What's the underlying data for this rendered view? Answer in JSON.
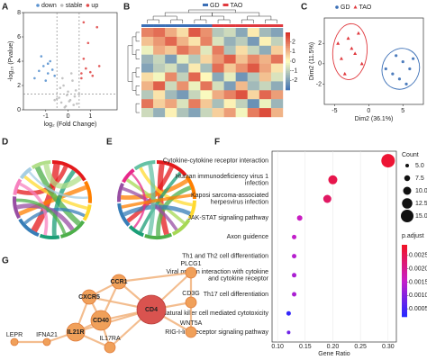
{
  "chart_data": [
    {
      "panel": "A",
      "type": "scatter",
      "xlabel": "log₂ (Fold Change)",
      "ylabel": "-log₁₀ (Pvalue)",
      "xlim": [
        -2,
        2.2
      ],
      "xticks": [
        -1,
        0,
        1
      ],
      "ylim": [
        0,
        8
      ],
      "yticks": [
        0,
        2,
        4,
        6,
        8
      ],
      "vlines": [
        -0.5,
        0.5
      ],
      "hline": 1.3,
      "series": [
        {
          "name": "down",
          "color": "#5b93d0",
          "x": [
            -1.3,
            -1.1,
            -0.9,
            -0.8,
            -1.5,
            -0.7,
            -1.0,
            -0.6,
            -1.2,
            -0.9
          ],
          "values": [
            3.2,
            3.6,
            3.0,
            4.0,
            2.6,
            3.3,
            2.4,
            2.8,
            4.4,
            3.8
          ]
        },
        {
          "name": "stable",
          "color": "#bdbdbd",
          "x": [
            -0.4,
            -0.3,
            -0.2,
            -0.1,
            0,
            0.1,
            0.2,
            0.3,
            0.4,
            -0.5,
            -0.35,
            0.35,
            -0.15,
            0.15,
            0.05,
            -0.05,
            -0.25,
            0.25,
            -0.6,
            0.5
          ],
          "values": [
            1.0,
            0.6,
            2.0,
            0.3,
            1.5,
            0.8,
            2.4,
            1.1,
            0.5,
            0.9,
            1.8,
            1.6,
            0.2,
            3.0,
            0.7,
            1.2,
            2.6,
            0.4,
            0.8,
            1.3
          ]
        },
        {
          "name": "up",
          "color": "#e04a4a",
          "x": [
            0.6,
            0.8,
            0.7,
            1.0,
            1.3,
            0.9,
            0.6,
            1.1,
            1.4,
            0.7
          ],
          "values": [
            3.0,
            3.4,
            4.2,
            3.1,
            6.8,
            5.5,
            2.6,
            2.8,
            3.6,
            7.2
          ]
        }
      ]
    },
    {
      "panel": "B",
      "type": "heatmap",
      "series": [
        {
          "name": "GD",
          "color": "#3b6fb6"
        },
        {
          "name": "TAO",
          "color": "#e0393e"
        }
      ],
      "column_group": [
        0,
        0,
        0,
        0,
        0,
        0,
        1,
        1,
        1,
        1,
        1,
        1
      ],
      "zlim": [
        -3,
        3
      ],
      "zticks": [
        -2,
        -1,
        0,
        1,
        2
      ],
      "values": [
        [
          1.8,
          2.1,
          1.2,
          0.5,
          2.4,
          1.6,
          -1.2,
          -0.8,
          -1.9,
          0.3,
          -1.5,
          -2.0
        ],
        [
          0.9,
          1.5,
          2.2,
          1.1,
          0.4,
          1.8,
          -0.6,
          -1.7,
          -1.1,
          -2.2,
          0.2,
          -1.0
        ],
        [
          -0.3,
          1.2,
          0.8,
          2.0,
          1.4,
          -0.5,
          1.9,
          -1.3,
          0.5,
          -0.9,
          -1.8,
          0.7
        ],
        [
          -1.6,
          -0.9,
          -2.1,
          -0.4,
          -1.2,
          0.6,
          1.5,
          2.3,
          0.9,
          1.7,
          1.1,
          2.0
        ],
        [
          -2.0,
          -1.1,
          -0.7,
          -1.8,
          0.3,
          -1.4,
          2.1,
          0.8,
          1.6,
          2.4,
          1.3,
          0.4
        ],
        [
          0.5,
          -0.2,
          1.7,
          -1.0,
          2.2,
          0.1,
          -1.9,
          -0.4,
          -2.3,
          -1.2,
          0.9,
          -0.6
        ],
        [
          1.1,
          2.3,
          -0.8,
          1.6,
          -0.3,
          2.0,
          -0.7,
          -2.1,
          1.0,
          -1.5,
          -0.9,
          -1.8
        ],
        [
          -1.2,
          0.4,
          -1.5,
          -2.2,
          -0.9,
          -0.1,
          1.2,
          1.8,
          2.5,
          0.6,
          2.2,
          1.4
        ],
        [
          2.0,
          0.7,
          1.3,
          -0.6,
          1.9,
          0.8,
          -1.4,
          0.2,
          -1.0,
          -2.4,
          -0.3,
          -1.6
        ],
        [
          -0.8,
          -1.7,
          0.2,
          -1.3,
          -2.0,
          -0.9,
          0.7,
          1.4,
          -0.2,
          1.9,
          2.6,
          1.1
        ]
      ]
    },
    {
      "panel": "C",
      "type": "scatter",
      "xlabel": "Dim2 (36.1%)",
      "ylabel": "Dim2 (11.5%)",
      "xlim": [
        -6.5,
        8
      ],
      "xticks": [
        -5,
        0,
        5
      ],
      "ylim": [
        -4,
        4.5
      ],
      "yticks": [
        -2,
        0,
        2
      ],
      "series": [
        {
          "name": "GD",
          "color": "#3b6fb6",
          "marker": "circle",
          "x": [
            3.5,
            5,
            4.5,
            6,
            5.5,
            4,
            2.5,
            6.5
          ],
          "values": [
            -1,
            0.2,
            -1.5,
            -0.5,
            -2,
            0.8,
            -0.5,
            0.5
          ]
        },
        {
          "name": "TAO",
          "color": "#e0393e",
          "marker": "triangle",
          "x": [
            -3,
            -2,
            -4,
            -1.5,
            -3.5,
            -2.5,
            -1,
            -4.5
          ],
          "values": [
            2.5,
            1,
            0.5,
            3,
            -1,
            1.5,
            0,
            2
          ]
        }
      ]
    },
    {
      "panel": "D",
      "type": "chord",
      "colors": [
        "#e41a1c",
        "#ff7f00",
        "#ffd92f",
        "#4daf4a",
        "#1b9e77",
        "#377eb8",
        "#984ea3",
        "#f781bf",
        "#a6cee3",
        "#b2df8a"
      ],
      "values": [
        14,
        8,
        6,
        10,
        7,
        9,
        8,
        6,
        5,
        7
      ],
      "links": [
        [
          0,
          5,
          3
        ],
        [
          0,
          7,
          2
        ],
        [
          1,
          6,
          2
        ],
        [
          2,
          8,
          1.5
        ],
        [
          3,
          9,
          2.5
        ],
        [
          4,
          0,
          2
        ],
        [
          5,
          2,
          1.5
        ],
        [
          6,
          3,
          2
        ],
        [
          7,
          4,
          1.5
        ],
        [
          8,
          1,
          1
        ],
        [
          9,
          0,
          2.5
        ],
        [
          3,
          6,
          1.5
        ]
      ]
    },
    {
      "panel": "E",
      "type": "chord",
      "colors": [
        "#e41a1c",
        "#ff7f00",
        "#ffd92f",
        "#a6d854",
        "#4daf4a",
        "#1b9e77",
        "#377eb8",
        "#984ea3",
        "#e7298a",
        "#66c2a5"
      ],
      "values": [
        12,
        9,
        7,
        8,
        10,
        6,
        9,
        7,
        6,
        8
      ],
      "links": [
        [
          0,
          4,
          2.5
        ],
        [
          0,
          6,
          2
        ],
        [
          1,
          7,
          2
        ],
        [
          2,
          9,
          1.5
        ],
        [
          3,
          8,
          1.5
        ],
        [
          4,
          1,
          2
        ],
        [
          5,
          0,
          1.5
        ],
        [
          6,
          2,
          2
        ],
        [
          7,
          3,
          1.5
        ],
        [
          8,
          5,
          1
        ],
        [
          9,
          4,
          2
        ],
        [
          1,
          6,
          1.5
        ]
      ]
    },
    {
      "panel": "F",
      "type": "dot",
      "xlabel": "Gene Ratio",
      "categories": [
        [
          "Cytokine-cytokine receptor interaction"
        ],
        [
          "Human immunodeficiency virus 1",
          "infection"
        ],
        [
          "Kaposi sarcoma-associated",
          "herpesvirus infection"
        ],
        [
          "JAK-STAT signaling pathway"
        ],
        [
          "Axon guidence"
        ],
        [
          "Th1 and Th2 cell differentiation"
        ],
        [
          "Viral protein interaction with cytokine",
          "and cytokine receptor"
        ],
        [
          "Th17 cell differentiation"
        ],
        [
          "Natural killer cell mediated cytotoxicity"
        ],
        [
          "RIG-I-like receptor signaling pathway"
        ]
      ],
      "values": [
        0.3,
        0.2,
        0.19,
        0.14,
        0.13,
        0.13,
        0.13,
        0.13,
        0.12,
        0.12
      ],
      "sizes": [
        16,
        11,
        10,
        7,
        6,
        6,
        6,
        6,
        6,
        5
      ],
      "colors": [
        0.0028,
        0.0026,
        0.0024,
        0.0016,
        0.0015,
        0.0014,
        0.0013,
        0.0013,
        0.0003,
        0.0008
      ],
      "xlim": [
        0.09,
        0.315
      ],
      "xticks": [
        {
          "value": 0.1,
          "label": "0.10"
        },
        0.15,
        {
          "value": 0.2,
          "label": "0.20"
        },
        0.25,
        {
          "value": 0.3,
          "label": "0.30"
        }
      ],
      "size_title": "Count",
      "size_ticks": [
        {
          "value": 5,
          "label": "5.0"
        },
        7.5,
        {
          "value": 10,
          "label": "10.0"
        },
        12.5,
        {
          "value": 15,
          "label": "15.0"
        }
      ],
      "color_title": "p.adjust",
      "color_lim": [
        0.0002,
        0.0029
      ],
      "color_ticks": [
        0.0025,
        {
          "value": 0.002,
          "label": "0.0020"
        },
        0.0015,
        {
          "value": 0.001,
          "label": "0.0010"
        },
        0.0005
      ]
    },
    {
      "panel": "G",
      "type": "network",
      "nodes": [
        "CD4",
        "CD40",
        "IL21R",
        "CXCR5",
        "CCR1",
        "PLCG1",
        "CD3G",
        "WNT5A",
        "IL17RA",
        "LEPR",
        "IFNA21"
      ],
      "edges": [
        [
          0,
          1
        ],
        [
          0,
          2
        ],
        [
          0,
          3
        ],
        [
          0,
          4
        ],
        [
          0,
          5
        ],
        [
          0,
          6
        ],
        [
          0,
          7
        ],
        [
          0,
          8
        ],
        [
          1,
          2
        ],
        [
          1,
          3
        ],
        [
          1,
          4
        ],
        [
          2,
          3
        ],
        [
          2,
          8
        ],
        [
          2,
          10
        ],
        [
          3,
          4
        ],
        [
          5,
          6
        ],
        [
          6,
          7
        ],
        [
          9,
          10
        ],
        [
          1,
          8
        ],
        [
          4,
          5
        ]
      ]
    }
  ]
}
